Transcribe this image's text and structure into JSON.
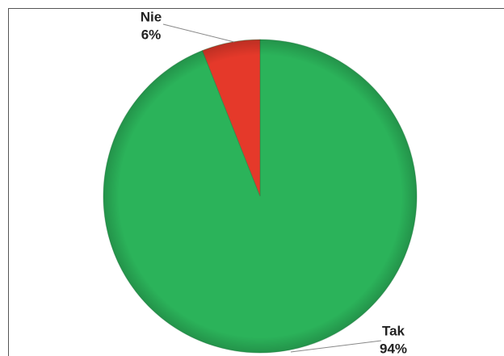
{
  "chart_data": {
    "type": "pie",
    "categories": [
      "Tak",
      "Nie"
    ],
    "values": [
      94,
      6
    ],
    "value_labels": [
      "94%",
      "6%"
    ],
    "colors": [
      "#2bb35a",
      "#e5392a"
    ]
  }
}
